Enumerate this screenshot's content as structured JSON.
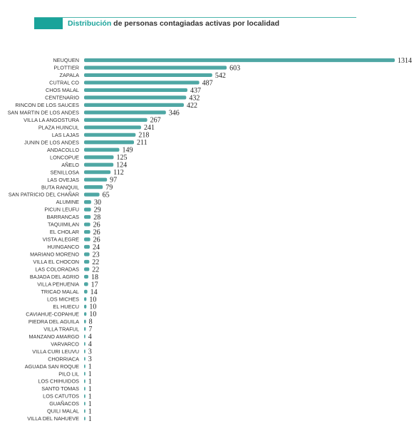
{
  "header": {
    "title_highlight": "Distribución",
    "title_rest": " de personas contagiadas activas por localidad"
  },
  "colors": {
    "accent": "#1aa39a",
    "bar": "#4fa7a4",
    "text": "#333333"
  },
  "chart_data": {
    "type": "bar",
    "orientation": "horizontal",
    "title": "Distribución de personas contagiadas activas por localidad",
    "xlabel": "",
    "ylabel": "",
    "xlim": [
      0,
      1314
    ],
    "grid": false,
    "legend": "none",
    "categories": [
      "NEUQUEN",
      "PLOTTIER",
      "ZAPALA",
      "CUTRAL CO",
      "CHOS MALAL",
      "CENTENARIO",
      "RINCON DE LOS SAUCES",
      "SAN MARTIN DE LOS ANDES",
      "VILLA LA ANGOSTURA",
      "PLAZA HUINCUL",
      "LAS LAJAS",
      "JUNIN DE LOS ANDES",
      "ANDACOLLO",
      "LONCOPUE",
      "AÑELO",
      "SENILLOSA",
      "LAS OVEJAS",
      "BUTA RANQUIL",
      "SAN PATRICIO DEL CHAÑAR",
      "ALUMINE",
      "PICUN LEUFU",
      "BARRANCAS",
      "TAQUIMILAN",
      "EL CHOLAR",
      "VISTA ALEGRE",
      "HUINGANCO",
      "MARIANO MORENO",
      "VILLA EL CHOCON",
      "LAS COLORADAS",
      "BAJADA DEL AGRIO",
      "VILLA PEHUENIA",
      "TRICAO MALAL",
      "LOS MICHES",
      "EL HUECU",
      "CAVIAHUE-COPAHUE",
      "PIEDRA DEL AGUILA",
      "VILLA TRAFUL",
      "MANZANO AMARGO",
      "VARVARCO",
      "VILLA CURI LEUVU",
      "CHORRIACA",
      "AGUADA SAN ROQUE",
      "PILO LIL",
      "LOS CHIHUIDOS",
      "SANTO TOMAS",
      "LOS CATUTOS",
      "GUAÑACOS",
      "QUILI MALAL",
      "VILLA DEL NAHUEVE"
    ],
    "values": [
      1314,
      603,
      542,
      487,
      437,
      432,
      422,
      346,
      267,
      241,
      218,
      211,
      149,
      125,
      124,
      112,
      97,
      79,
      65,
      30,
      29,
      28,
      26,
      26,
      26,
      24,
      23,
      22,
      22,
      18,
      17,
      14,
      10,
      10,
      10,
      8,
      7,
      4,
      4,
      3,
      3,
      1,
      1,
      1,
      1,
      1,
      1,
      1,
      1
    ]
  }
}
